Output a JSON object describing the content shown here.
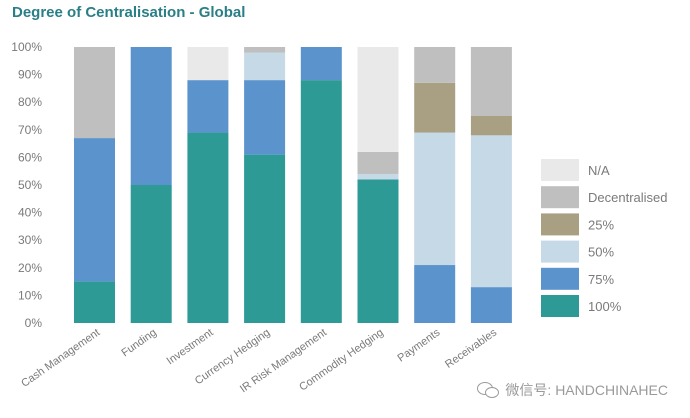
{
  "chart_data": {
    "type": "bar",
    "stacked": true,
    "title": "Degree of Centralisation - Global",
    "xlabel": "",
    "ylabel": "",
    "ylim": [
      0,
      100
    ],
    "yticks": [
      "0%",
      "10%",
      "20%",
      "30%",
      "40%",
      "50%",
      "60%",
      "70%",
      "80%",
      "90%",
      "100%"
    ],
    "grid": false,
    "legend_position": "right",
    "categories": [
      "Cash Management",
      "Funding",
      "Investment",
      "Currency Hedging",
      "IR Risk Management",
      "Commodity Hedging",
      "Payments",
      "Receivables"
    ],
    "series": [
      {
        "name": "100%",
        "color": "#2e9a96",
        "values": [
          15,
          50,
          69,
          61,
          88,
          52,
          0,
          0
        ]
      },
      {
        "name": "75%",
        "color": "#5b93cc",
        "values": [
          52,
          50,
          19,
          27,
          12,
          0,
          21,
          13
        ]
      },
      {
        "name": "50%",
        "color": "#c6d9e6",
        "values": [
          0,
          0,
          0,
          10,
          0,
          2,
          48,
          55
        ]
      },
      {
        "name": "25%",
        "color": "#a99f82",
        "values": [
          0,
          0,
          0,
          0,
          0,
          0,
          18,
          7
        ]
      },
      {
        "name": "Decentralised",
        "color": "#bfbfbf",
        "values": [
          33,
          0,
          0,
          2,
          0,
          8,
          13,
          25
        ]
      },
      {
        "name": "N/A",
        "color": "#e9e9e9",
        "values": [
          0,
          0,
          12,
          0,
          0,
          38,
          0,
          0
        ]
      }
    ],
    "legend_order": [
      "N/A",
      "Decentralised",
      "25%",
      "50%",
      "75%",
      "100%"
    ]
  },
  "watermark": {
    "icon": "wechat-icon",
    "text": "微信号: HANDCHINAHEC"
  }
}
